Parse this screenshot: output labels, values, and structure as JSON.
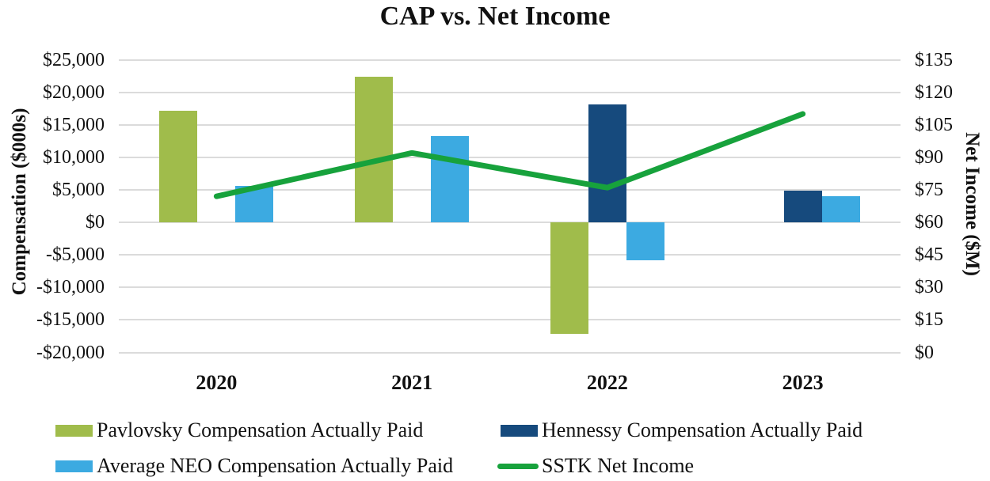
{
  "chart_data": {
    "type": "combo-bar-line",
    "title": "CAP vs. Net Income",
    "categories": [
      "2020",
      "2021",
      "2022",
      "2023"
    ],
    "bar_series": [
      {
        "key": "pavlovsky",
        "name": "Pavlovsky Compensation Actually Paid",
        "color": "#A0BC4B",
        "axis": "left",
        "values": [
          17100,
          22400,
          -17100,
          null
        ]
      },
      {
        "key": "hennessy",
        "name": "Hennessy Compensation Actually Paid",
        "color": "#164A7D",
        "axis": "left",
        "values": [
          null,
          null,
          18100,
          4900
        ]
      },
      {
        "key": "avg-neo",
        "name": "Average NEO Compensation Actually Paid",
        "color": "#3CAAE1",
        "axis": "left",
        "values": [
          5600,
          13300,
          -5800,
          4000
        ]
      }
    ],
    "line_series": [
      {
        "key": "sstk-net-income",
        "name": "SSTK Net Income",
        "color": "#17A23C",
        "axis": "right",
        "values": [
          72,
          92,
          76,
          110
        ]
      }
    ],
    "left_axis": {
      "label": "Compensation ($000s)",
      "min": -20000,
      "max": 25000,
      "step": 5000,
      "ticks": [
        "$25,000",
        "$20,000",
        "$15,000",
        "$10,000",
        "$5,000",
        "$0",
        "-$5,000",
        "-$10,000",
        "-$15,000",
        "-$20,000"
      ]
    },
    "right_axis": {
      "label": "Net Income ($M)",
      "min": 0,
      "max": 135,
      "step": 15,
      "ticks": [
        "$135",
        "$120",
        "$105",
        "$90",
        "$75",
        "$60",
        "$45",
        "$30",
        "$15",
        "$0"
      ]
    },
    "grid": true,
    "legend_position": "bottom",
    "gridline_color": "#DBDBDB",
    "background": "#FFFFFF",
    "text_color": "#111111"
  }
}
